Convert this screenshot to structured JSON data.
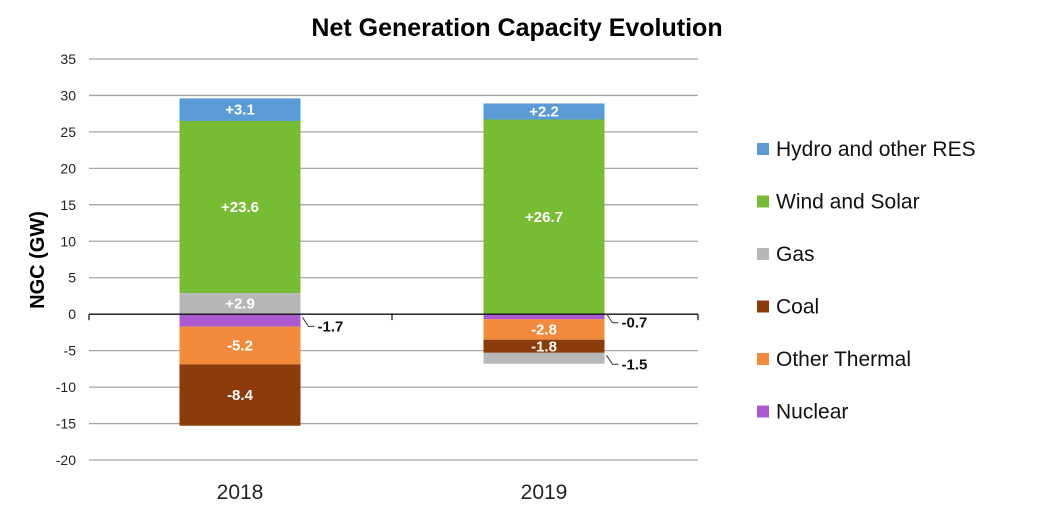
{
  "chart_data": {
    "type": "bar",
    "stacked": true,
    "title": "Net Generation Capacity Evolution",
    "xlabel": "",
    "ylabel": "NGC (GW)",
    "ylim": [
      -20,
      35
    ],
    "yticks": [
      35,
      30,
      25,
      20,
      15,
      10,
      5,
      0,
      -5,
      -10,
      -15,
      -20
    ],
    "grid": true,
    "legend_position": "right",
    "categories": [
      "2018",
      "2019"
    ],
    "series": [
      {
        "name": "Hydro and other RES",
        "color": "#5b9bd5",
        "values": [
          3.1,
          2.2
        ],
        "labels": [
          "+3.1",
          "+2.2"
        ]
      },
      {
        "name": "Wind and Solar",
        "color": "#77bc33",
        "values": [
          23.6,
          26.7
        ],
        "labels": [
          "+23.6",
          "+26.7"
        ]
      },
      {
        "name": "Gas",
        "color": "#b7b7b7",
        "values": [
          2.9,
          -1.5
        ],
        "labels": [
          "+2.9",
          "-1.5"
        ]
      },
      {
        "name": "Coal",
        "color": "#8b3c0a",
        "values": [
          -8.4,
          -1.8
        ],
        "labels": [
          "-8.4",
          "-1.8"
        ]
      },
      {
        "name": "Other Thermal",
        "color": "#f28a3c",
        "values": [
          -5.2,
          -2.8
        ],
        "labels": [
          "-5.2",
          "-2.8"
        ]
      },
      {
        "name": "Nuclear",
        "color": "#ad5ad0",
        "values": [
          -1.7,
          -0.7
        ],
        "labels": [
          "-1.7",
          "-0.7"
        ]
      }
    ],
    "stack_order_positive": [
      "Gas",
      "Wind and Solar",
      "Hydro and other RES"
    ],
    "stack_order_negative": [
      [
        "Nuclear",
        "Other Thermal",
        "Coal"
      ],
      [
        "Nuclear",
        "Other Thermal",
        "Coal",
        "Gas"
      ]
    ],
    "outside_labels": [
      {
        "category": "2018",
        "series": "Nuclear"
      },
      {
        "category": "2019",
        "series": "Nuclear"
      },
      {
        "category": "2019",
        "series": "Gas"
      }
    ]
  }
}
